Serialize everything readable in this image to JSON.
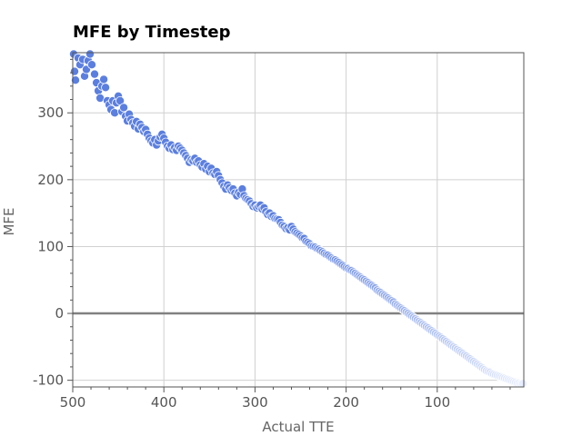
{
  "chart_data": {
    "type": "scatter",
    "title": "MFE by Timestep",
    "xlabel": "Actual TTE",
    "ylabel": "MFE",
    "xlim": [
      500,
      5
    ],
    "ylim": [
      -110,
      390
    ],
    "x_inverted": true,
    "grid": true,
    "xticks": [
      500,
      400,
      300,
      200,
      100
    ],
    "yticks": [
      -100,
      0,
      100,
      200,
      300
    ],
    "reference_line": {
      "y": 0,
      "color": "#808080"
    },
    "colors": {
      "dark": "#5b7fe0",
      "light": "#e8eeff",
      "edge": "#ffffff"
    },
    "color_encoding": "marker color fades from blue (high TTE) to near-white (low TTE)",
    "points": [
      [
        499,
        388
      ],
      [
        498,
        362
      ],
      [
        497,
        349
      ],
      [
        494,
        382
      ],
      [
        492,
        372
      ],
      [
        489,
        380
      ],
      [
        487,
        355
      ],
      [
        485,
        365
      ],
      [
        483,
        378
      ],
      [
        481,
        388
      ],
      [
        479,
        372
      ],
      [
        476,
        358
      ],
      [
        474,
        345
      ],
      [
        472,
        333
      ],
      [
        470,
        322
      ],
      [
        468,
        340
      ],
      [
        466,
        350
      ],
      [
        464,
        338
      ],
      [
        462,
        318
      ],
      [
        460,
        312
      ],
      [
        458,
        305
      ],
      [
        456,
        318
      ],
      [
        454,
        300
      ],
      [
        452,
        315
      ],
      [
        450,
        325
      ],
      [
        448,
        318
      ],
      [
        446,
        302
      ],
      [
        444,
        308
      ],
      [
        442,
        295
      ],
      [
        440,
        288
      ],
      [
        438,
        298
      ],
      [
        436,
        290
      ],
      [
        434,
        285
      ],
      [
        432,
        280
      ],
      [
        430,
        287
      ],
      [
        428,
        276
      ],
      [
        426,
        283
      ],
      [
        424,
        278
      ],
      [
        422,
        272
      ],
      [
        420,
        275
      ],
      [
        418,
        268
      ],
      [
        416,
        262
      ],
      [
        414,
        258
      ],
      [
        412,
        255
      ],
      [
        410,
        260
      ],
      [
        408,
        252
      ],
      [
        406,
        258
      ],
      [
        404,
        264
      ],
      [
        402,
        268
      ],
      [
        400,
        262
      ],
      [
        398,
        256
      ],
      [
        396,
        250
      ],
      [
        394,
        247
      ],
      [
        392,
        252
      ],
      [
        390,
        245
      ],
      [
        388,
        248
      ],
      [
        386,
        244
      ],
      [
        384,
        250
      ],
      [
        382,
        247
      ],
      [
        380,
        244
      ],
      [
        378,
        240
      ],
      [
        376,
        236
      ],
      [
        374,
        232
      ],
      [
        372,
        226
      ],
      [
        370,
        230
      ],
      [
        368,
        228
      ],
      [
        366,
        232
      ],
      [
        364,
        226
      ],
      [
        362,
        228
      ],
      [
        360,
        222
      ],
      [
        358,
        219
      ],
      [
        356,
        224
      ],
      [
        354,
        216
      ],
      [
        352,
        220
      ],
      [
        350,
        212
      ],
      [
        348,
        217
      ],
      [
        346,
        210
      ],
      [
        344,
        208
      ],
      [
        342,
        212
      ],
      [
        340,
        206
      ],
      [
        338,
        200
      ],
      [
        336,
        195
      ],
      [
        334,
        190
      ],
      [
        332,
        186
      ],
      [
        330,
        192
      ],
      [
        328,
        188
      ],
      [
        326,
        184
      ],
      [
        324,
        186
      ],
      [
        322,
        180
      ],
      [
        320,
        176
      ],
      [
        318,
        181
      ],
      [
        316,
        178
      ],
      [
        314,
        186
      ],
      [
        312,
        176
      ],
      [
        310,
        172
      ],
      [
        308,
        170
      ],
      [
        306,
        168
      ],
      [
        304,
        164
      ],
      [
        302,
        160
      ],
      [
        300,
        162
      ],
      [
        298,
        158
      ],
      [
        296,
        160
      ],
      [
        294,
        162
      ],
      [
        292,
        156
      ],
      [
        290,
        158
      ],
      [
        288,
        152
      ],
      [
        286,
        148
      ],
      [
        284,
        150
      ],
      [
        282,
        145
      ],
      [
        280,
        146
      ],
      [
        278,
        142
      ],
      [
        276,
        141
      ],
      [
        274,
        140
      ],
      [
        272,
        136
      ],
      [
        270,
        132
      ],
      [
        268,
        130
      ],
      [
        266,
        127
      ],
      [
        264,
        128
      ],
      [
        262,
        125
      ],
      [
        260,
        130
      ],
      [
        258,
        126
      ],
      [
        256,
        122
      ],
      [
        254,
        120
      ],
      [
        252,
        118
      ],
      [
        250,
        116
      ],
      [
        248,
        113
      ],
      [
        246,
        112
      ],
      [
        244,
        108
      ],
      [
        242,
        106
      ],
      [
        240,
        104
      ],
      [
        238,
        101
      ],
      [
        236,
        100
      ],
      [
        234,
        99
      ],
      [
        232,
        97
      ],
      [
        230,
        96
      ],
      [
        228,
        94
      ],
      [
        226,
        92
      ],
      [
        224,
        90
      ],
      [
        222,
        88
      ],
      [
        220,
        87
      ],
      [
        218,
        85
      ],
      [
        216,
        83
      ],
      [
        214,
        81
      ],
      [
        212,
        80
      ],
      [
        210,
        78
      ],
      [
        208,
        76
      ],
      [
        206,
        74
      ],
      [
        204,
        72
      ],
      [
        202,
        70
      ],
      [
        200,
        68
      ],
      [
        198,
        67
      ],
      [
        196,
        65
      ],
      [
        194,
        64
      ],
      [
        192,
        62
      ],
      [
        190,
        60
      ],
      [
        188,
        58
      ],
      [
        186,
        56
      ],
      [
        184,
        54
      ],
      [
        182,
        52
      ],
      [
        180,
        50
      ],
      [
        178,
        48
      ],
      [
        176,
        46
      ],
      [
        174,
        44
      ],
      [
        172,
        42
      ],
      [
        170,
        40
      ],
      [
        168,
        38
      ],
      [
        166,
        35
      ],
      [
        164,
        33
      ],
      [
        162,
        31
      ],
      [
        160,
        29
      ],
      [
        158,
        27
      ],
      [
        156,
        25
      ],
      [
        154,
        23
      ],
      [
        152,
        21
      ],
      [
        150,
        19
      ],
      [
        148,
        17
      ],
      [
        146,
        14
      ],
      [
        144,
        12
      ],
      [
        142,
        10
      ],
      [
        140,
        8
      ],
      [
        138,
        6
      ],
      [
        136,
        4
      ],
      [
        134,
        2
      ],
      [
        132,
        0
      ],
      [
        130,
        -2
      ],
      [
        128,
        -4
      ],
      [
        126,
        -6
      ],
      [
        124,
        -8
      ],
      [
        122,
        -10
      ],
      [
        120,
        -12
      ],
      [
        118,
        -14
      ],
      [
        116,
        -16
      ],
      [
        114,
        -18
      ],
      [
        112,
        -20
      ],
      [
        110,
        -22
      ],
      [
        108,
        -24
      ],
      [
        106,
        -26
      ],
      [
        104,
        -28
      ],
      [
        102,
        -30
      ],
      [
        100,
        -32
      ],
      [
        98,
        -34
      ],
      [
        96,
        -36
      ],
      [
        94,
        -38
      ],
      [
        92,
        -40
      ],
      [
        90,
        -42
      ],
      [
        88,
        -44
      ],
      [
        86,
        -46
      ],
      [
        84,
        -48
      ],
      [
        82,
        -50
      ],
      [
        80,
        -52
      ],
      [
        78,
        -54
      ],
      [
        76,
        -56
      ],
      [
        74,
        -58
      ],
      [
        72,
        -60
      ],
      [
        70,
        -62
      ],
      [
        68,
        -64
      ],
      [
        66,
        -66
      ],
      [
        64,
        -68
      ],
      [
        62,
        -70
      ],
      [
        60,
        -72
      ],
      [
        58,
        -74
      ],
      [
        56,
        -76
      ],
      [
        54,
        -78
      ],
      [
        52,
        -80
      ],
      [
        50,
        -82
      ],
      [
        48,
        -84
      ],
      [
        46,
        -86
      ],
      [
        44,
        -87
      ],
      [
        42,
        -88
      ],
      [
        40,
        -90
      ],
      [
        38,
        -91
      ],
      [
        36,
        -92
      ],
      [
        34,
        -93
      ],
      [
        32,
        -94
      ],
      [
        30,
        -95
      ],
      [
        28,
        -96
      ],
      [
        26,
        -97
      ],
      [
        24,
        -98
      ],
      [
        22,
        -99
      ],
      [
        20,
        -100
      ],
      [
        18,
        -101
      ],
      [
        16,
        -102
      ],
      [
        14,
        -103
      ],
      [
        12,
        -104
      ],
      [
        10,
        -104
      ],
      [
        8,
        -105
      ],
      [
        6,
        -105
      ]
    ]
  }
}
